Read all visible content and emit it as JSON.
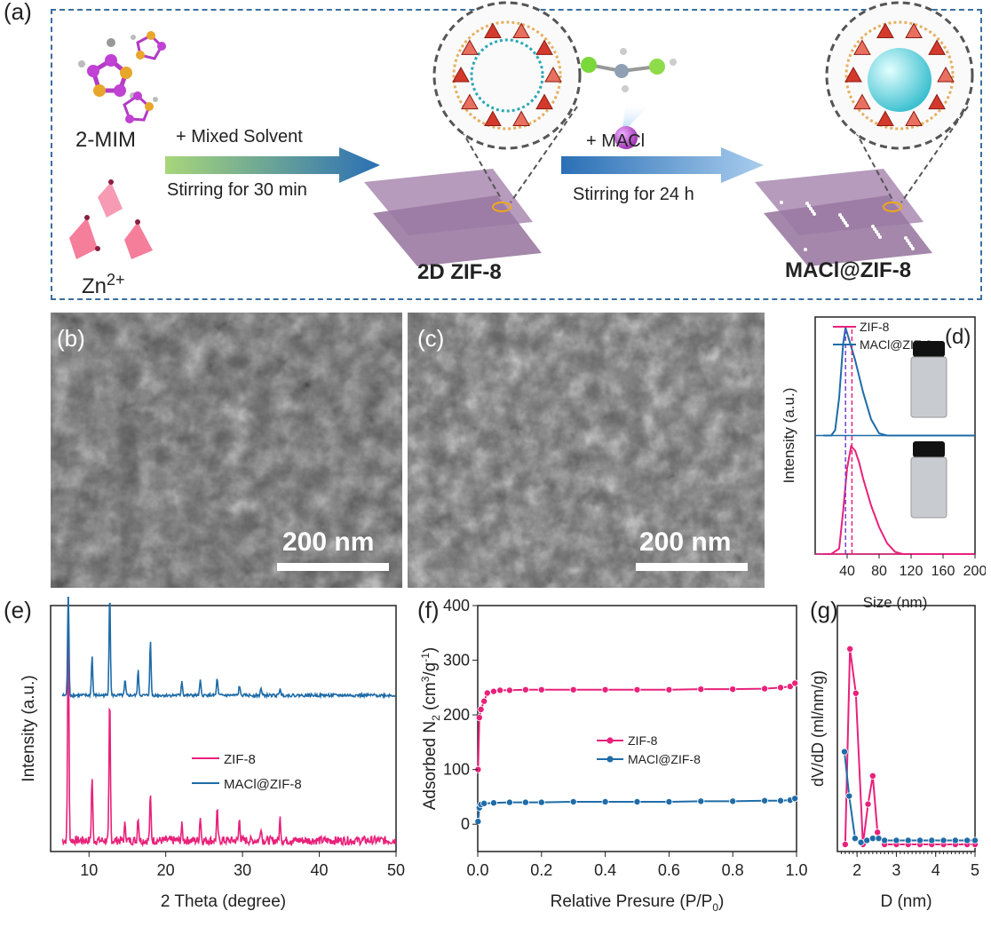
{
  "panel_labels": {
    "a": "(a)",
    "b": "(b)",
    "c": "(c)",
    "d": "(d)",
    "e": "(e)",
    "f": "(f)",
    "g": "(g)"
  },
  "schematic": {
    "mim_label": "2-MIM",
    "zn_label_base": "Zn",
    "zn_label_sup": "2+",
    "step1_top": "+ Mixed Solvent",
    "step1_bottom": "Stirring for 30 min",
    "step2_top": "+ MACl",
    "step2_bottom": "Stirring for 24 h",
    "product1": "2D ZIF-8",
    "product2": "MACl@ZIF-8"
  },
  "sem": {
    "scale_b": "200 nm",
    "scale_c": "200 nm"
  },
  "colors": {
    "zif8": "#e8217a",
    "macl": "#1f6ca8",
    "dash_purple": "#7b3fd0",
    "dash_pink": "#e8217a",
    "frame": "#3a6fa0"
  },
  "chart_data": [
    {
      "panel": "d",
      "type": "line",
      "xlabel": "Size (nm)",
      "ylabel": "Intensity (a.u.)",
      "xlim": [
        0,
        200
      ],
      "xticks": [
        40,
        80,
        120,
        160,
        200
      ],
      "ylim": [
        0,
        2.2
      ],
      "legend": "top-left",
      "series": [
        {
          "name": "ZIF-8",
          "color": "#e8217a",
          "offset": 0,
          "x": [
            10,
            20,
            30,
            35,
            40,
            45,
            50,
            55,
            60,
            70,
            80,
            90,
            100,
            110,
            120,
            130,
            200
          ],
          "y": [
            0,
            0,
            0.05,
            0.4,
            0.8,
            1.0,
            0.96,
            0.85,
            0.7,
            0.45,
            0.25,
            0.1,
            0.02,
            0,
            0,
            0,
            0
          ]
        },
        {
          "name": "MACl@ZIF-8",
          "color": "#1f6ca8",
          "offset": 1.1,
          "x": [
            10,
            20,
            25,
            30,
            35,
            38,
            42,
            50,
            60,
            70,
            80,
            90,
            100,
            200
          ],
          "y": [
            0,
            0,
            0.05,
            0.35,
            0.85,
            1.0,
            0.9,
            0.7,
            0.4,
            0.15,
            0.02,
            0,
            0,
            0
          ]
        }
      ],
      "markers": [
        {
          "x": 38,
          "series": "MACl@ZIF-8"
        },
        {
          "x": 46,
          "series": "ZIF-8"
        }
      ]
    },
    {
      "panel": "e",
      "type": "line",
      "xlabel": "2 Theta (degree)",
      "ylabel": "Intensity (a.u.)",
      "xlim": [
        5,
        50
      ],
      "xticks": [
        10,
        20,
        30,
        40,
        50
      ],
      "ylim": [
        0,
        10
      ],
      "legend": "center",
      "series": [
        {
          "name": "ZIF-8",
          "color": "#e8217a",
          "baseline": 0.45,
          "peaks": [
            [
              7.3,
              9.0
            ],
            [
              10.4,
              2.6
            ],
            [
              12.7,
              5.8
            ],
            [
              14.7,
              0.7
            ],
            [
              16.4,
              1.0
            ],
            [
              18.0,
              1.8
            ],
            [
              22.1,
              0.6
            ],
            [
              24.5,
              1.0
            ],
            [
              26.7,
              1.2
            ],
            [
              29.6,
              0.9
            ],
            [
              32.4,
              0.6
            ],
            [
              34.9,
              0.9
            ]
          ]
        },
        {
          "name": "MACl@ZIF-8",
          "color": "#1f6ca8",
          "baseline": 6.35,
          "peaks": [
            [
              7.3,
              4.3
            ],
            [
              10.4,
              1.6
            ],
            [
              12.7,
              4.2
            ],
            [
              14.7,
              0.6
            ],
            [
              16.4,
              1.0
            ],
            [
              18.0,
              2.2
            ],
            [
              22.1,
              0.6
            ],
            [
              24.5,
              0.6
            ],
            [
              26.7,
              0.7
            ],
            [
              29.6,
              0.4
            ],
            [
              32.4,
              0.3
            ],
            [
              34.9,
              0.3
            ]
          ]
        }
      ]
    },
    {
      "panel": "f",
      "type": "scatter",
      "xlabel": "Relative Presure (P/P",
      "xlabel_sub": "0",
      "xlabel_end": ")",
      "ylabel_pre": "Adsorbed N",
      "ylabel_sub": "2",
      "ylabel_mid": " (cm",
      "ylabel_sup1": "3",
      "ylabel_g": "/g",
      "ylabel_sup2": "-1",
      "ylabel_end": ")",
      "xlim": [
        0,
        1.0
      ],
      "xticks": [
        0.0,
        0.2,
        0.4,
        0.6,
        0.8,
        1.0
      ],
      "ylim": [
        -50,
        400
      ],
      "yticks": [
        0,
        100,
        200,
        300,
        400
      ],
      "legend": "center-right",
      "series": [
        {
          "name": "ZIF-8",
          "color": "#e8217a",
          "x": [
            0.001,
            0.005,
            0.01,
            0.02,
            0.03,
            0.05,
            0.07,
            0.1,
            0.15,
            0.2,
            0.3,
            0.4,
            0.5,
            0.6,
            0.7,
            0.8,
            0.9,
            0.95,
            0.98,
            0.995
          ],
          "y": [
            100,
            195,
            210,
            225,
            240,
            243,
            245,
            245,
            246,
            246,
            246,
            246,
            246,
            246,
            247,
            247,
            248,
            250,
            252,
            258
          ]
        },
        {
          "name": "MACl@ZIF-8",
          "color": "#1f6ca8",
          "x": [
            0.001,
            0.005,
            0.01,
            0.02,
            0.05,
            0.1,
            0.15,
            0.2,
            0.3,
            0.4,
            0.5,
            0.6,
            0.7,
            0.8,
            0.9,
            0.95,
            0.98,
            0.995
          ],
          "y": [
            5,
            30,
            36,
            38,
            39,
            40,
            40,
            40,
            41,
            41,
            41,
            41,
            42,
            42,
            43,
            43,
            44,
            47
          ]
        }
      ]
    },
    {
      "panel": "g",
      "type": "scatter",
      "xlabel": "D (nm)",
      "ylabel": "dV/dD (ml/nm/g)",
      "xlim": [
        1.5,
        5
      ],
      "xticks": [
        2,
        3,
        4,
        5
      ],
      "ylim": [
        0,
        1
      ],
      "series": [
        {
          "name": "ZIF-8",
          "color": "#e8217a",
          "x": [
            1.7,
            1.82,
            1.97,
            2.15,
            2.28,
            2.4,
            2.52,
            2.7,
            3.0,
            3.3,
            3.6,
            3.9,
            4.2,
            4.5,
            4.8,
            5.0
          ],
          "y": [
            0.0,
            0.97,
            0.75,
            0.0,
            0.2,
            0.34,
            0.06,
            0.0,
            0.0,
            0.0,
            0.0,
            0.0,
            0.0,
            0.0,
            0.0,
            0.0
          ]
        },
        {
          "name": "MACl@ZIF-8",
          "color": "#1f6ca8",
          "x": [
            1.68,
            1.8,
            1.95,
            2.1,
            2.25,
            2.4,
            2.55,
            2.7,
            3.0,
            3.3,
            3.6,
            3.9,
            4.2,
            4.5,
            4.8,
            5.0
          ],
          "y": [
            0.46,
            0.24,
            0.03,
            0.01,
            0.02,
            0.03,
            0.03,
            0.02,
            0.02,
            0.02,
            0.02,
            0.02,
            0.02,
            0.02,
            0.02,
            0.02
          ]
        }
      ]
    }
  ]
}
